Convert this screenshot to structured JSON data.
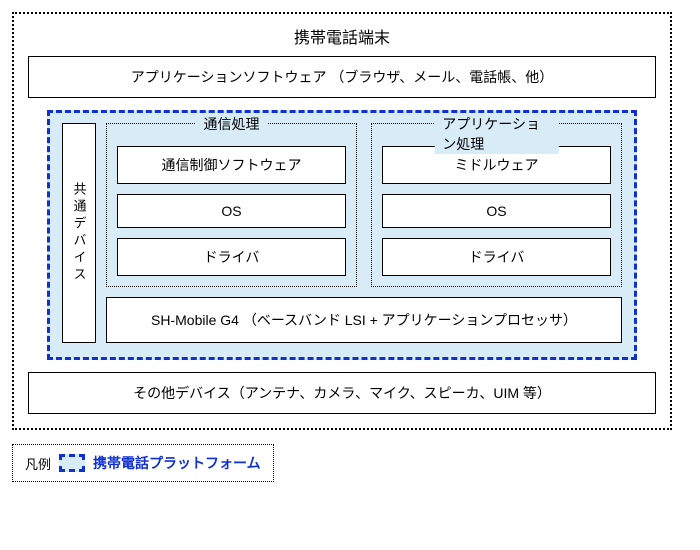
{
  "diagram": {
    "type": "block-diagram",
    "outer_title": "携帯電話端末",
    "app_software": "アプリケーションソフトウェア （ブラウザ、メール、電話帳、他）",
    "platform": {
      "shared_device": "共通デバイス",
      "comm_group": {
        "title": "通信処理",
        "items": [
          "通信制御ソフトウェア",
          "OS",
          "ドライバ"
        ]
      },
      "app_group": {
        "title": "アプリケーション処理",
        "items": [
          "ミドルウェア",
          "OS",
          "ドライバ"
        ]
      },
      "chip": "SH-Mobile G4 （ベースバンド LSI + アプリケーションプロセッサ）"
    },
    "other_devices": "その他デバイス（アンテナ、カメラ、マイク、スピーカ、UIM 等）",
    "legend": {
      "label": "凡例",
      "text": "携帯電話プラットフォーム"
    },
    "styling": {
      "platform_border_color": "#1030d0",
      "platform_fill": "#d8ecf7",
      "box_border_color": "#000000",
      "background": "#ffffff",
      "font_family": "MS Gothic"
    }
  }
}
